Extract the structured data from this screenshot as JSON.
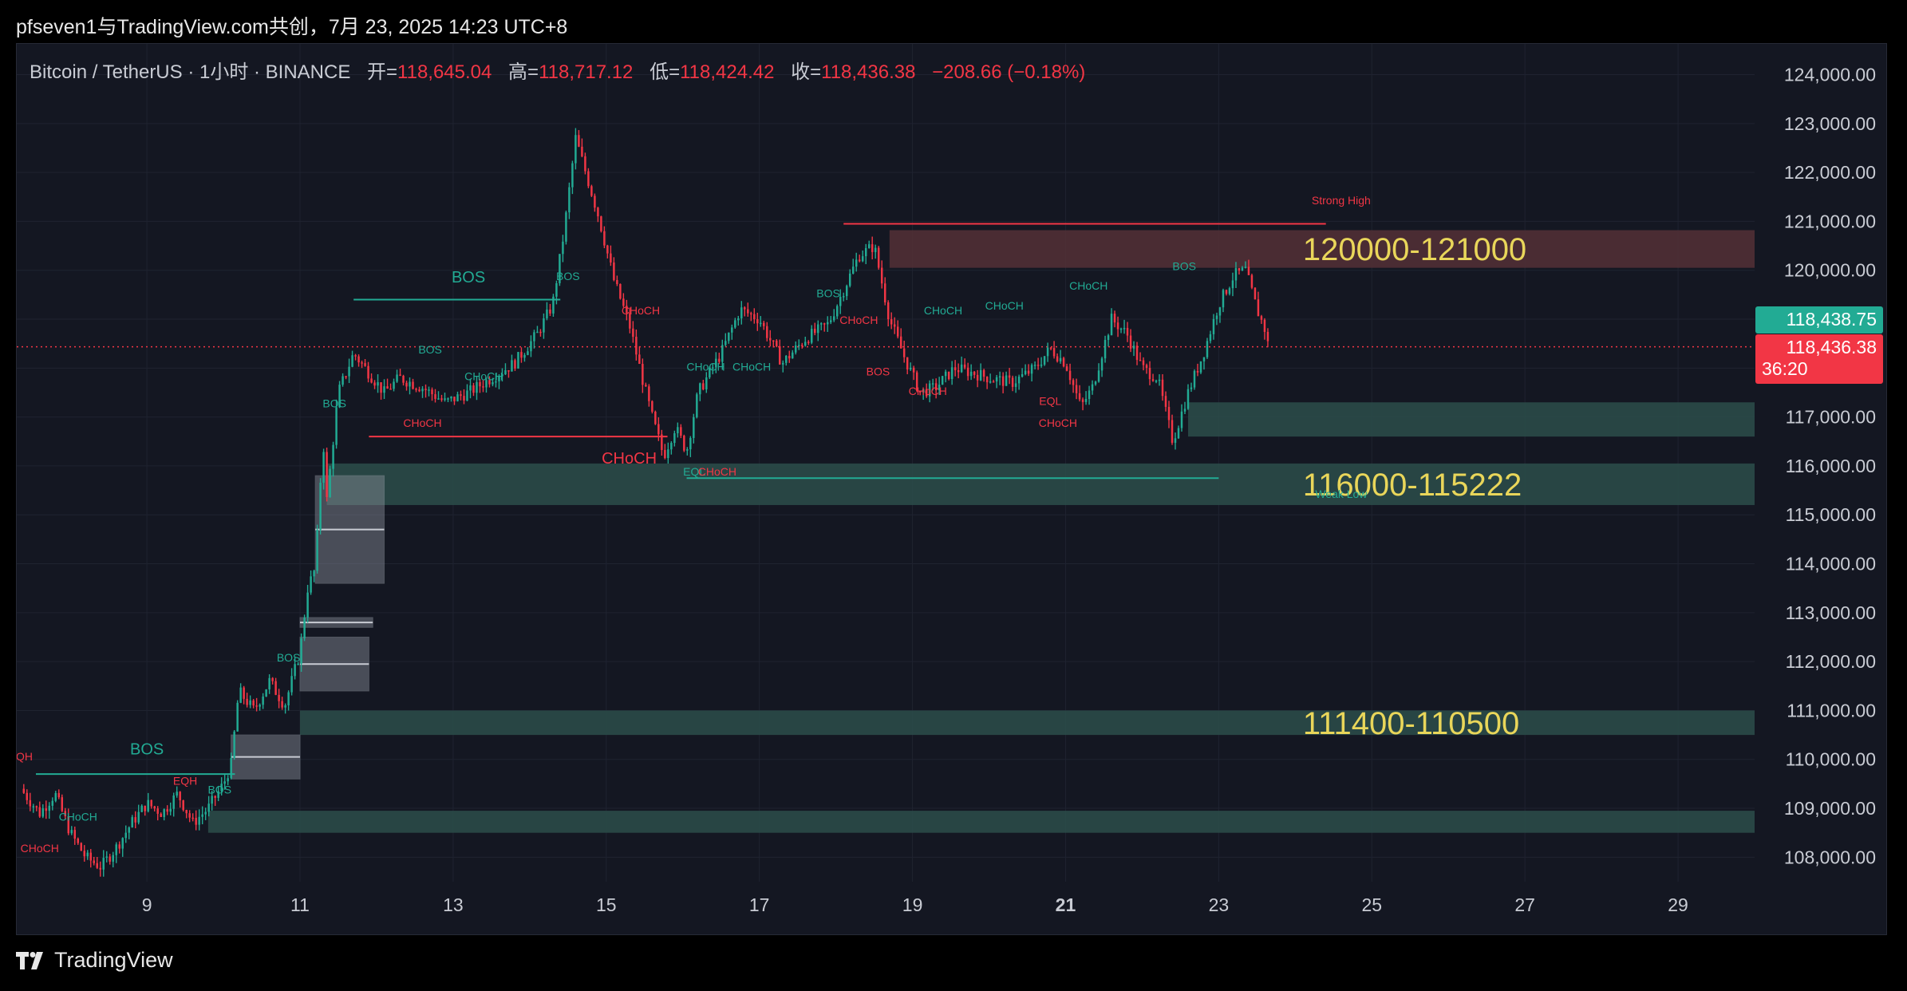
{
  "header": {
    "title": "pfseven1与TradingView.com共创，7月 23, 2025 14:23 UTC+8"
  },
  "legend": {
    "symbol": "Bitcoin / TetherUS · 1小时 · BINANCE",
    "open_label": "开=",
    "open_value": "118,645.04",
    "high_label": "高=",
    "high_value": "118,717.12",
    "low_label": "低=",
    "low_value": "118,424.42",
    "close_label": "收=",
    "close_value": "118,436.38",
    "change": "−208.66 (−0.18%)"
  },
  "badges": {
    "price_green": "118,438.75",
    "price_red": "118,436.38",
    "countdown": "36:20"
  },
  "footer": {
    "brand": "TradingView"
  },
  "colors": {
    "up": "#22ab94",
    "down": "#f23645",
    "background": "#141722",
    "zone_green": "#2b4d4a",
    "zone_red": "#533036",
    "zone_label": "#e9d65a"
  },
  "chart_data": {
    "type": "candlestick",
    "interval": "1小时",
    "y_range": [
      107500,
      124400
    ],
    "y_ticks": [
      "108,000.00",
      "109,000.00",
      "110,000.00",
      "111,000.00",
      "112,000.00",
      "113,000.00",
      "114,000.00",
      "115,000.00",
      "116,000.00",
      "117,000.00",
      "118,000.00",
      "119,000.00",
      "120,000.00",
      "121,000.00",
      "122,000.00",
      "123,000.00",
      "124,000.00"
    ],
    "y_tick_values": [
      108000,
      109000,
      110000,
      111000,
      112000,
      113000,
      114000,
      115000,
      116000,
      117000,
      118000,
      119000,
      120000,
      121000,
      122000,
      123000,
      124000
    ],
    "x_range": [
      7.3,
      30.0
    ],
    "x_ticks": [
      {
        "day": 9,
        "label": "9"
      },
      {
        "day": 11,
        "label": "11"
      },
      {
        "day": 13,
        "label": "13"
      },
      {
        "day": 15,
        "label": "15"
      },
      {
        "day": 17,
        "label": "17"
      },
      {
        "day": 19,
        "label": "19"
      },
      {
        "day": 21,
        "label": "21",
        "bold": true
      },
      {
        "day": 23,
        "label": "23"
      },
      {
        "day": 25,
        "label": "25"
      },
      {
        "day": 27,
        "label": "27"
      },
      {
        "day": 29,
        "label": "29"
      }
    ],
    "current_price": 118436.38,
    "price_path": [
      [
        7.35,
        109400
      ],
      [
        7.6,
        108900
      ],
      [
        7.8,
        109300
      ],
      [
        8.0,
        108500
      ],
      [
        8.2,
        108000
      ],
      [
        8.4,
        107800
      ],
      [
        8.6,
        108200
      ],
      [
        8.8,
        108700
      ],
      [
        9.0,
        109100
      ],
      [
        9.2,
        108900
      ],
      [
        9.4,
        109300
      ],
      [
        9.6,
        108700
      ],
      [
        9.8,
        109000
      ],
      [
        10.0,
        109500
      ],
      [
        10.1,
        109900
      ],
      [
        10.2,
        111400
      ],
      [
        10.4,
        111000
      ],
      [
        10.6,
        111600
      ],
      [
        10.8,
        111100
      ],
      [
        11.0,
        112200
      ],
      [
        11.1,
        113500
      ],
      [
        11.2,
        113900
      ],
      [
        11.3,
        116600
      ],
      [
        11.35,
        115300
      ],
      [
        11.5,
        117500
      ],
      [
        11.7,
        118300
      ],
      [
        11.9,
        117900
      ],
      [
        12.1,
        117500
      ],
      [
        12.3,
        117800
      ],
      [
        12.6,
        117600
      ],
      [
        12.9,
        117300
      ],
      [
        13.2,
        117500
      ],
      [
        13.5,
        117800
      ],
      [
        13.8,
        118100
      ],
      [
        14.1,
        118700
      ],
      [
        14.3,
        119300
      ],
      [
        14.45,
        120800
      ],
      [
        14.6,
        122700
      ],
      [
        14.75,
        121900
      ],
      [
        14.9,
        121100
      ],
      [
        15.1,
        119800
      ],
      [
        15.3,
        118900
      ],
      [
        15.5,
        117600
      ],
      [
        15.6,
        117000
      ],
      [
        15.75,
        116200
      ],
      [
        15.9,
        116800
      ],
      [
        16.05,
        116300
      ],
      [
        16.2,
        117500
      ],
      [
        16.5,
        118300
      ],
      [
        16.75,
        119200
      ],
      [
        17.0,
        119000
      ],
      [
        17.3,
        118100
      ],
      [
        17.6,
        118600
      ],
      [
        17.9,
        118900
      ],
      [
        18.1,
        119600
      ],
      [
        18.3,
        120300
      ],
      [
        18.5,
        120500
      ],
      [
        18.7,
        119000
      ],
      [
        18.9,
        118200
      ],
      [
        19.1,
        117500
      ],
      [
        19.3,
        117600
      ],
      [
        19.55,
        118000
      ],
      [
        19.8,
        117900
      ],
      [
        20.0,
        117800
      ],
      [
        20.3,
        117700
      ],
      [
        20.6,
        118000
      ],
      [
        20.8,
        118400
      ],
      [
        21.0,
        118100
      ],
      [
        21.2,
        117200
      ],
      [
        21.35,
        117600
      ],
      [
        21.6,
        119000
      ],
      [
        21.8,
        118700
      ],
      [
        22.0,
        118000
      ],
      [
        22.2,
        117800
      ],
      [
        22.4,
        116500
      ],
      [
        22.6,
        117500
      ],
      [
        22.8,
        118300
      ],
      [
        23.0,
        119300
      ],
      [
        23.2,
        119900
      ],
      [
        23.35,
        120000
      ],
      [
        23.5,
        119200
      ],
      [
        23.6,
        118800
      ],
      [
        23.65,
        118436
      ]
    ],
    "zones": [
      {
        "label": "120000-121000",
        "from": 120050,
        "to": 120820,
        "start_day": 18.7,
        "type": "supply"
      },
      {
        "label": "116000-115222",
        "from": 115200,
        "to": 116050,
        "start_day": 11.35,
        "type": "demand"
      },
      {
        "label": "",
        "from": 116600,
        "to": 117300,
        "start_day": 22.6,
        "type": "demand"
      },
      {
        "label": "111400-110500",
        "from": 110500,
        "to": 111000,
        "start_day": 11.0,
        "type": "demand"
      },
      {
        "label": "",
        "from": 108500,
        "to": 108950,
        "start_day": 9.8,
        "type": "demand"
      }
    ],
    "order_blocks": [
      {
        "d0": 11.2,
        "d1": 12.1,
        "p0": 113600,
        "p1": 115800,
        "mid": 114700
      },
      {
        "d0": 11.0,
        "d1": 11.9,
        "p0": 111400,
        "p1": 112500,
        "mid": 111950
      },
      {
        "d0": 11.0,
        "d1": 11.95,
        "p0": 112700,
        "p1": 112900,
        "mid": 112800
      },
      {
        "d0": 10.1,
        "d1": 11.0,
        "p0": 109600,
        "p1": 110500,
        "mid": 110050
      }
    ],
    "structure_lines": [
      {
        "d0": 18.1,
        "d1": 24.4,
        "p": 120950,
        "color": "#f23645"
      },
      {
        "d0": 16.05,
        "d1": 23.0,
        "p": 115750,
        "color": "#22ab94"
      },
      {
        "d0": 11.7,
        "d1": 14.4,
        "p": 119400,
        "color": "#22ab94"
      },
      {
        "d0": 11.9,
        "d1": 15.8,
        "p": 116600,
        "color": "#f23645"
      },
      {
        "d0": 7.55,
        "d1": 10.15,
        "p": 109700,
        "color": "#22ab94"
      }
    ],
    "annotations": [
      {
        "text": "Strong High",
        "d": 24.6,
        "p": 121350,
        "color": "#f23645",
        "size": 14
      },
      {
        "text": "Weak Low",
        "d": 24.6,
        "p": 115350,
        "color": "#22ab94",
        "size": 14
      },
      {
        "text": "BOS",
        "d": 13.2,
        "p": 119750,
        "color": "#22ab94",
        "size": 20
      },
      {
        "text": "CHoCH",
        "d": 15.3,
        "p": 116050,
        "color": "#f23645",
        "size": 20
      },
      {
        "text": "BOS",
        "d": 9.0,
        "p": 110100,
        "color": "#22ab94",
        "size": 20
      },
      {
        "text": "BOS",
        "d": 12.7,
        "p": 118300,
        "color": "#22ab94",
        "size": 14
      },
      {
        "text": "CHoCH",
        "d": 13.4,
        "p": 117750,
        "color": "#22ab94",
        "size": 14
      },
      {
        "text": "CHoCH",
        "d": 12.6,
        "p": 116800,
        "color": "#f23645",
        "size": 14
      },
      {
        "text": "BOS",
        "d": 11.45,
        "p": 117200,
        "color": "#22ab94",
        "size": 14
      },
      {
        "text": "BOS",
        "d": 14.5,
        "p": 119800,
        "color": "#22ab94",
        "size": 14
      },
      {
        "text": "CHoCH",
        "d": 15.45,
        "p": 119100,
        "color": "#f23645",
        "size": 14
      },
      {
        "text": "CHoCH",
        "d": 16.3,
        "p": 117950,
        "color": "#22ab94",
        "size": 14
      },
      {
        "text": "CHoCH",
        "d": 16.9,
        "p": 117950,
        "color": "#22ab94",
        "size": 14
      },
      {
        "text": "EQL",
        "d": 16.15,
        "p": 115800,
        "color": "#22ab94",
        "size": 14
      },
      {
        "text": "CHoCH",
        "d": 16.45,
        "p": 115800,
        "color": "#f23645",
        "size": 14
      },
      {
        "text": "BOS",
        "d": 17.9,
        "p": 119450,
        "color": "#22ab94",
        "size": 14
      },
      {
        "text": "CHoCH",
        "d": 18.3,
        "p": 118900,
        "color": "#f23645",
        "size": 14
      },
      {
        "text": "BOS",
        "d": 18.55,
        "p": 117850,
        "color": "#f23645",
        "size": 14
      },
      {
        "text": "CHoCH",
        "d": 19.4,
        "p": 119100,
        "color": "#22ab94",
        "size": 14
      },
      {
        "text": "CHoCH",
        "d": 20.2,
        "p": 119200,
        "color": "#22ab94",
        "size": 14
      },
      {
        "text": "CHoCH",
        "d": 19.2,
        "p": 117450,
        "color": "#f23645",
        "size": 14
      },
      {
        "text": "EQL",
        "d": 20.8,
        "p": 117250,
        "color": "#f23645",
        "size": 14
      },
      {
        "text": "CHoCH",
        "d": 20.9,
        "p": 116800,
        "color": "#f23645",
        "size": 14
      },
      {
        "text": "CHoCH",
        "d": 21.3,
        "p": 119600,
        "color": "#22ab94",
        "size": 14
      },
      {
        "text": "BOS",
        "d": 22.55,
        "p": 120000,
        "color": "#22ab94",
        "size": 14
      },
      {
        "text": "BOS",
        "d": 10.85,
        "p": 112000,
        "color": "#22ab94",
        "size": 14
      },
      {
        "text": "BOS",
        "d": 9.95,
        "p": 109300,
        "color": "#22ab94",
        "size": 14
      },
      {
        "text": "EQH",
        "d": 9.5,
        "p": 109480,
        "color": "#f23645",
        "size": 14
      },
      {
        "text": "EQH",
        "d": 7.35,
        "p": 109980,
        "color": "#f23645",
        "size": 14
      },
      {
        "text": "CHoCH",
        "d": 8.1,
        "p": 108750,
        "color": "#22ab94",
        "size": 14
      },
      {
        "text": "CHoCH",
        "d": 7.6,
        "p": 108100,
        "color": "#f23645",
        "size": 14
      }
    ]
  }
}
